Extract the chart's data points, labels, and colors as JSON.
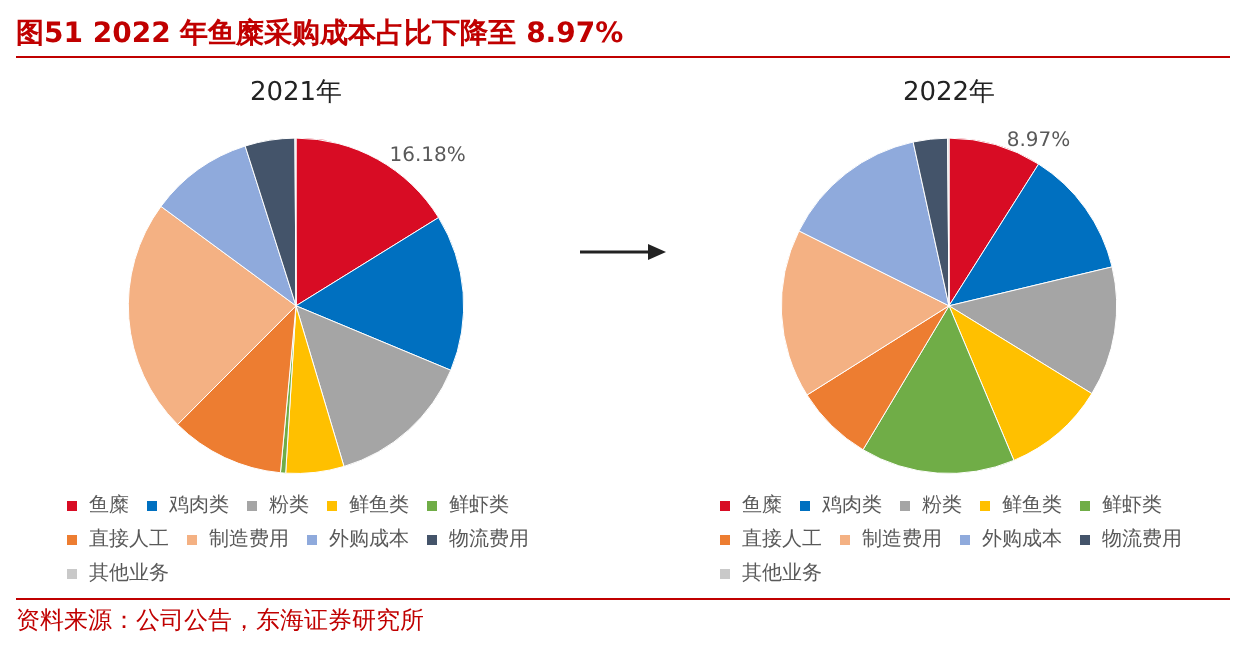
{
  "chart_data": [
    {
      "type": "pie",
      "title": "2021年",
      "annotations": [
        "图51  2022 年鱼糜采购成本占比下降至 8.97%",
        "资料来源：公司公告，东海证券研究所"
      ],
      "categories": [
        "鱼糜",
        "鸡肉类",
        "粉类",
        "鲜鱼类",
        "鲜虾类",
        "直接人工",
        "制造费用",
        "外购成本",
        "物流费用",
        "其他业务"
      ],
      "values": [
        16.18,
        15.1,
        14.1,
        5.6,
        0.5,
        11.0,
        22.62,
        10.0,
        4.8,
        0.1
      ],
      "value_labels": [
        "16.18%",
        null,
        null,
        null,
        null,
        null,
        null,
        null,
        null,
        null
      ],
      "colors": [
        "#d80c24",
        "#0070c0",
        "#a5a5a5",
        "#ffc000",
        "#70ad47",
        "#ed7d31",
        "#f4b183",
        "#8faadc",
        "#44546a",
        "#c9c9c9"
      ],
      "legend": "bottom"
    },
    {
      "type": "pie",
      "title": "2022年",
      "categories": [
        "鱼糜",
        "鸡肉类",
        "粉类",
        "鲜鱼类",
        "鲜虾类",
        "直接人工",
        "制造费用",
        "外购成本",
        "物流费用",
        "其他业务"
      ],
      "values": [
        8.97,
        12.3,
        12.5,
        9.9,
        14.9,
        7.5,
        16.3,
        14.2,
        3.3,
        0.13
      ],
      "value_labels": [
        "8.97%",
        null,
        null,
        null,
        null,
        null,
        null,
        null,
        null,
        null
      ],
      "colors": [
        "#d80c24",
        "#0070c0",
        "#a5a5a5",
        "#ffc000",
        "#70ad47",
        "#ed7d31",
        "#f4b183",
        "#8faadc",
        "#44546a",
        "#c9c9c9"
      ],
      "legend": "bottom"
    }
  ]
}
